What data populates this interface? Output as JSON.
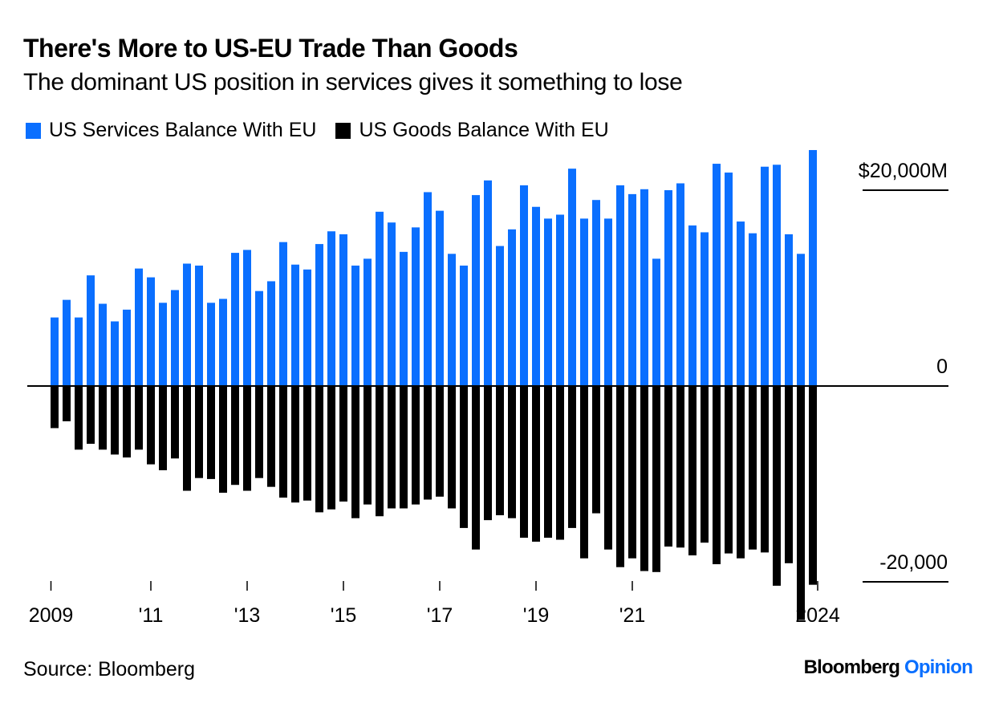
{
  "header": {
    "title": "There's More to US-EU Trade Than Goods",
    "subtitle": "The dominant US position in services gives it something to lose"
  },
  "legend": [
    {
      "label": "US Services Balance With EU",
      "color": "#0a6fff"
    },
    {
      "label": "US Goods Balance With EU",
      "color": "#000000"
    }
  ],
  "footer": {
    "source": "Source: Bloomberg",
    "brand_part1": "Bloomberg",
    "brand_part2": "Opinion"
  },
  "chart_data": {
    "type": "bar",
    "title": "There's More to US-EU Trade Than Goods",
    "subtitle": "The dominant US position in services gives it something to lose",
    "xlabel": "",
    "ylabel": "",
    "unit": "USD millions (quarterly)",
    "ylim": [
      -24000,
      24500
    ],
    "grid": false,
    "legend_position": "top-left",
    "categories": [
      "2009Q1",
      "2009Q2",
      "2009Q3",
      "2009Q4",
      "2010Q1",
      "2010Q2",
      "2010Q3",
      "2010Q4",
      "2011Q1",
      "2011Q2",
      "2011Q3",
      "2011Q4",
      "2012Q1",
      "2012Q2",
      "2012Q3",
      "2012Q4",
      "2013Q1",
      "2013Q2",
      "2013Q3",
      "2013Q4",
      "2014Q1",
      "2014Q2",
      "2014Q3",
      "2014Q4",
      "2015Q1",
      "2015Q2",
      "2015Q3",
      "2015Q4",
      "2016Q1",
      "2016Q2",
      "2016Q3",
      "2016Q4",
      "2017Q1",
      "2017Q2",
      "2017Q3",
      "2017Q4",
      "2018Q1",
      "2018Q2",
      "2018Q3",
      "2018Q4",
      "2019Q1",
      "2019Q2",
      "2019Q3",
      "2019Q4",
      "2020Q1",
      "2020Q2",
      "2020Q3",
      "2020Q4",
      "2021Q1",
      "2021Q2",
      "2021Q3",
      "2021Q4",
      "2022Q1",
      "2022Q2",
      "2022Q3",
      "2022Q4",
      "2023Q1",
      "2023Q2",
      "2023Q3",
      "2023Q4",
      "2024Q1",
      "2024Q2",
      "2024Q3",
      "2024Q4"
    ],
    "series": [
      {
        "name": "US Services Balance With EU",
        "color": "#0a6fff",
        "values": [
          7000,
          8800,
          7000,
          11300,
          8400,
          6600,
          7800,
          12000,
          11100,
          8500,
          9800,
          12500,
          12300,
          8500,
          8900,
          13600,
          13900,
          9700,
          10700,
          14700,
          12400,
          11900,
          14500,
          15800,
          15500,
          12300,
          13000,
          17800,
          16700,
          13700,
          16200,
          19800,
          17900,
          13500,
          12300,
          19500,
          21000,
          14300,
          16000,
          20500,
          18300,
          17100,
          17500,
          22200,
          17100,
          19000,
          17100,
          20500,
          19600,
          20100,
          13000,
          20000,
          20700,
          16400,
          15700,
          22700,
          21800,
          16800,
          15600,
          22400,
          22600,
          15500,
          13500,
          24100
        ]
      },
      {
        "name": "US Goods Balance With EU",
        "color": "#000000",
        "values": [
          -4300,
          -3600,
          -6500,
          -5900,
          -6500,
          -7000,
          -7300,
          -6500,
          -8000,
          -8600,
          -7400,
          -10700,
          -9400,
          -9500,
          -10900,
          -10100,
          -10700,
          -9400,
          -10300,
          -11400,
          -11900,
          -11700,
          -12900,
          -12600,
          -11800,
          -13500,
          -12100,
          -13300,
          -12500,
          -12500,
          -12100,
          -11600,
          -11300,
          -12500,
          -14500,
          -16700,
          -13700,
          -13200,
          -13500,
          -15500,
          -15900,
          -15500,
          -15700,
          -14500,
          -17600,
          -13000,
          -16700,
          -18500,
          -17600,
          -18900,
          -19000,
          -16400,
          -16500,
          -17300,
          -16000,
          -18200,
          -17100,
          -17600,
          -16700,
          -17000,
          -20400,
          -18100,
          -23900,
          -20300
        ]
      }
    ],
    "y_ticks": [
      {
        "value": 20000,
        "label": "$20,000M"
      },
      {
        "value": 0,
        "label": "0"
      },
      {
        "value": -20000,
        "label": "-20,000"
      }
    ],
    "x_ticks": [
      {
        "index": -0.3,
        "label": "2009"
      },
      {
        "index": 8,
        "label": "'11"
      },
      {
        "index": 16,
        "label": "'13"
      },
      {
        "index": 24,
        "label": "'15"
      },
      {
        "index": 32,
        "label": "'17"
      },
      {
        "index": 40,
        "label": "'19"
      },
      {
        "index": 48,
        "label": "'21"
      },
      {
        "index": 63.4,
        "label": "2024"
      }
    ]
  }
}
